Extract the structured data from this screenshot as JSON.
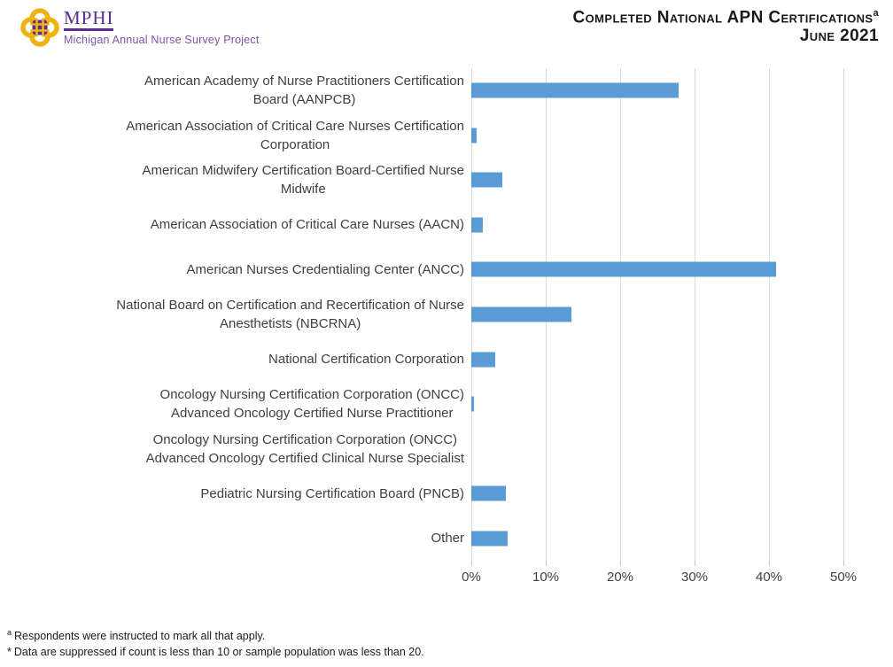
{
  "header": {
    "logo_org": "MPHI",
    "logo_tagline": "Michigan Annual Nurse Survey Project",
    "title_line1": "Completed National APN Certifications",
    "title_superscript": "a",
    "title_line2": "June 2021"
  },
  "colors": {
    "bar_blue": "#5b9bd5",
    "gridline_gray": "#d9d9d9",
    "label_gray": "#404040",
    "logo_purple": "#5c2d91",
    "logo_gold": "#efb310"
  },
  "chart_data": {
    "type": "bar",
    "orientation": "horizontal",
    "title": "Completed National APN Certifications, June 2021",
    "xlabel": "",
    "ylabel": "",
    "xlim": [
      0,
      50
    ],
    "grid": true,
    "x_ticks": [
      "0%",
      "10%",
      "20%",
      "30%",
      "40%",
      "50%"
    ],
    "categories": [
      "American Academy of Nurse Practitioners Certification Board (AANPCB)",
      "American Association of Critical Care Nurses Certification Corporation",
      "American Midwifery Certification Board-Certified Nurse Midwife",
      "American Association of Critical Care Nurses (AACN)",
      "American Nurses Credentialing Center (ANCC)",
      "National Board on Certification and Recertification of Nurse Anesthetists (NBCRNA)",
      "National Certification Corporation",
      "Oncology Nursing Certification Corporation (ONCC) Advanced Oncology Certified Nurse Practitioner",
      "Oncology Nursing Certification Corporation (ONCC) Advanced Oncology Certified Clinical Nurse Specialist",
      "Pediatric Nursing Certification Board (PNCB)",
      "Other"
    ],
    "values": [
      27.8,
      0.7,
      4.2,
      1.5,
      41,
      13.5,
      3.2,
      0.4,
      0,
      4.7,
      4.9
    ],
    "rows": [
      {
        "label": "American Academy of Nurse Practitioners Certification\nBoard (AANPCB)",
        "value": 27.8
      },
      {
        "label": "American Association of Critical Care Nurses Certification\nCorporation",
        "value": 0.7
      },
      {
        "label": "American Midwifery Certification Board-Certified Nurse\nMidwife",
        "value": 4.2
      },
      {
        "label": "American Association of Critical Care Nurses (AACN)",
        "value": 1.5
      },
      {
        "label": "American Nurses Credentialing Center (ANCC)",
        "value": 41
      },
      {
        "label": "National Board on Certification and Recertification of Nurse\nAnesthetists (NBCRNA)",
        "value": 13.5
      },
      {
        "label": "National Certification Corporation",
        "value": 3.2
      },
      {
        "label": "Oncology Nursing Certification Corporation (ONCC)\nAdvanced Oncology Certified Nurse Practitioner",
        "value": 0.4
      },
      {
        "label": "Oncology Nursing Certification Corporation (ONCC)\nAdvanced Oncology Certified Clinical Nurse Specialist",
        "value": 0
      },
      {
        "label": "Pediatric Nursing Certification Board (PNCB)",
        "value": 4.7
      },
      {
        "label": "Other",
        "value": 4.9
      }
    ],
    "legend": null
  },
  "footnotes": [
    {
      "marker": "a",
      "text": "Respondents were instructed to mark all that apply."
    },
    {
      "marker": "*",
      "text": "Data are suppressed if count is less than 10 or sample population was less than 20."
    }
  ]
}
